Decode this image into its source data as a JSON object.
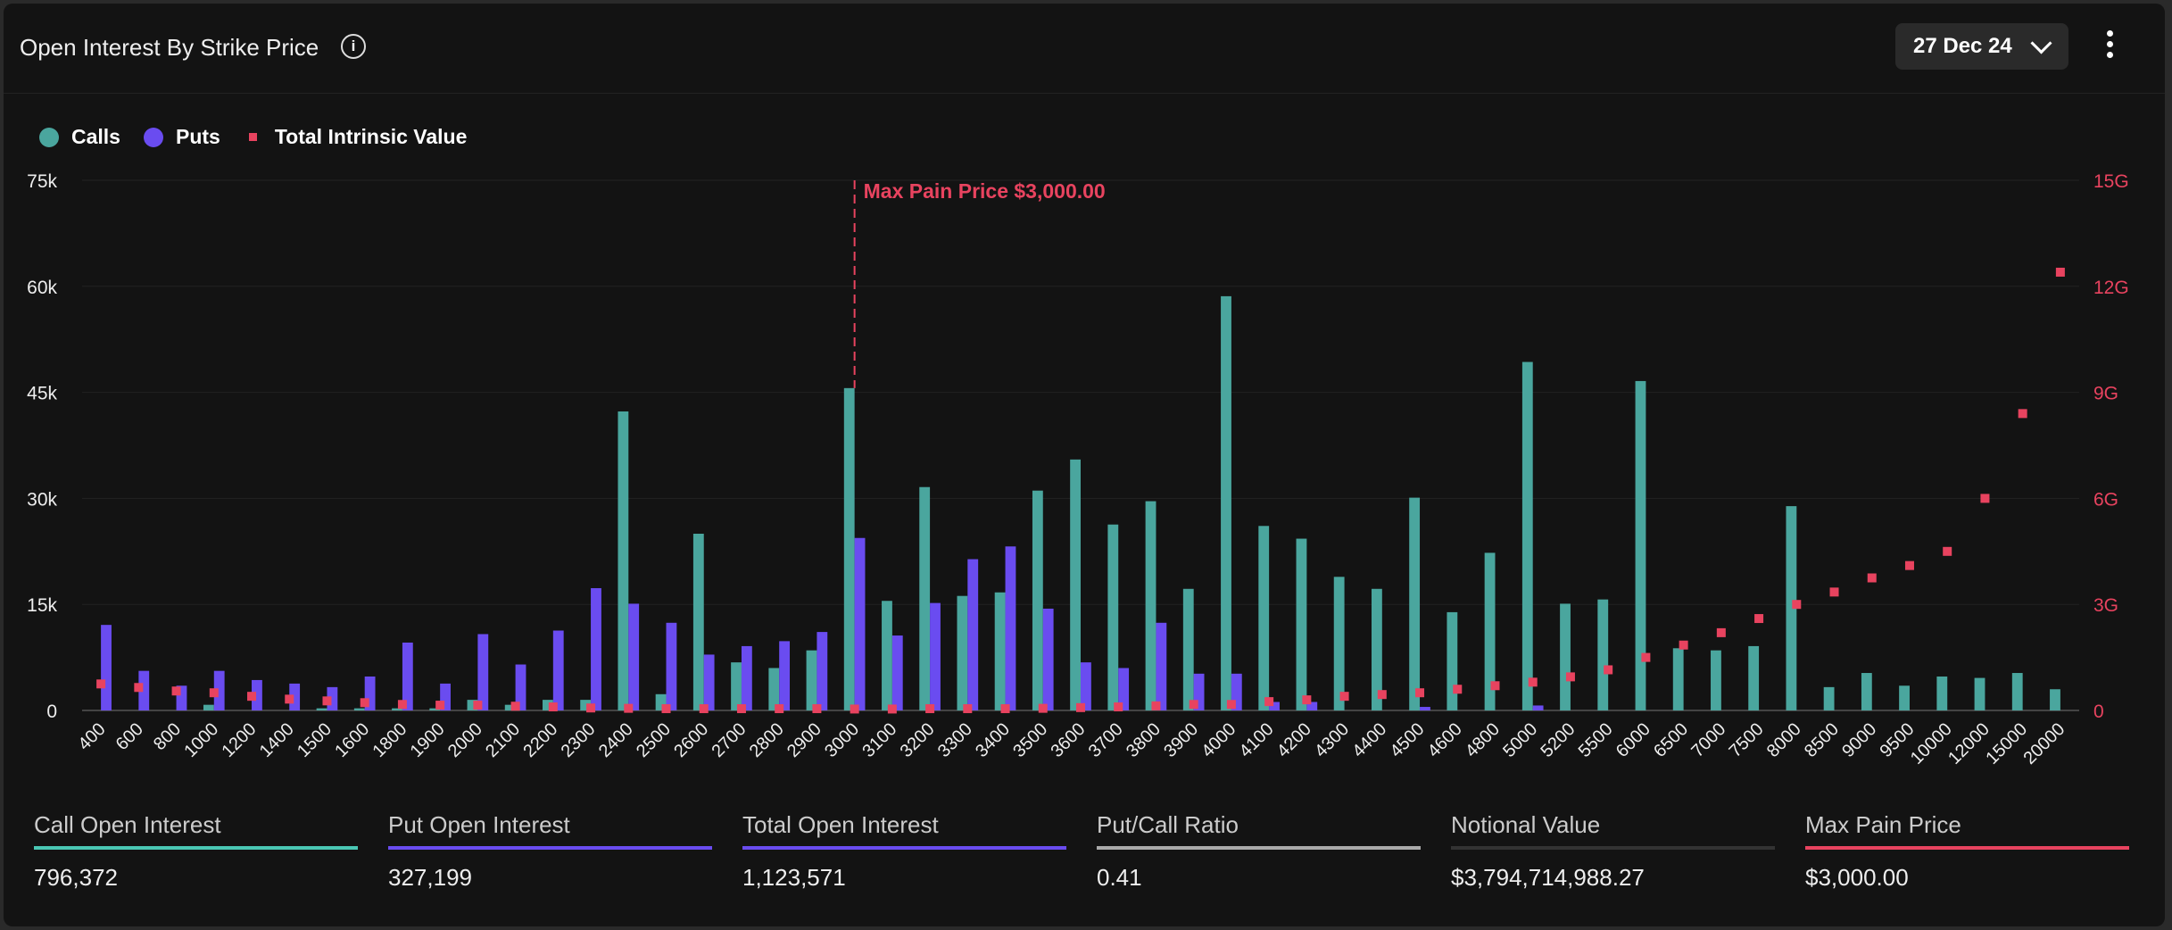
{
  "header": {
    "title": "Open Interest By Strike Price",
    "date_select": "27 Dec 24"
  },
  "legend": [
    {
      "name": "Calls",
      "color": "#4aa69e"
    },
    {
      "name": "Puts",
      "color": "#6a4cf0"
    },
    {
      "name": "Total Intrinsic Value",
      "color": "#e8435f"
    }
  ],
  "stats": [
    {
      "label": "Call Open Interest",
      "value": "796,372",
      "color": "#4ac7b4"
    },
    {
      "label": "Put Open Interest",
      "value": "327,199",
      "color": "#6a4cf0"
    },
    {
      "label": "Total Open Interest",
      "value": "1,123,571",
      "color": "#6a4cf0"
    },
    {
      "label": "Put/Call Ratio",
      "value": "0.41",
      "color": "#aaaaaa"
    },
    {
      "label": "Notional Value",
      "value": "$3,794,714,988.27",
      "color": "#333333"
    },
    {
      "label": "Max Pain Price",
      "value": "$3,000.00",
      "color": "#e8435f"
    }
  ],
  "chart_data": {
    "type": "bar",
    "categories": [
      "400",
      "600",
      "800",
      "1000",
      "1200",
      "1400",
      "1500",
      "1600",
      "1800",
      "1900",
      "2000",
      "2100",
      "2200",
      "2300",
      "2400",
      "2500",
      "2600",
      "2700",
      "2800",
      "2900",
      "3000",
      "3100",
      "3200",
      "3300",
      "3400",
      "3500",
      "3600",
      "3700",
      "3800",
      "3900",
      "4000",
      "4100",
      "4200",
      "4300",
      "4400",
      "4500",
      "4600",
      "4800",
      "5000",
      "5200",
      "5500",
      "6000",
      "6500",
      "7000",
      "7500",
      "8000",
      "8500",
      "9000",
      "9500",
      "10000",
      "12000",
      "15000",
      "20000"
    ],
    "series": [
      {
        "name": "Calls",
        "axis": "left",
        "values": [
          0,
          0,
          0,
          800,
          0,
          0,
          300,
          300,
          300,
          300,
          1500,
          800,
          1500,
          1500,
          42300,
          2300,
          25000,
          6800,
          6000,
          8500,
          45600,
          15500,
          31600,
          16200,
          16700,
          31100,
          35500,
          26300,
          29600,
          17200,
          58600,
          26100,
          24300,
          18900,
          17200,
          30100,
          13900,
          22300,
          49300,
          15100,
          15700,
          46600,
          8800,
          8500,
          9100,
          28900,
          3300,
          5300,
          3500,
          4800,
          4600,
          5300,
          3000
        ]
      },
      {
        "name": "Puts",
        "axis": "left",
        "values": [
          12100,
          5600,
          3500,
          5600,
          4300,
          3800,
          3300,
          4800,
          9600,
          3800,
          10800,
          6500,
          11300,
          17300,
          15100,
          12400,
          7900,
          9100,
          9800,
          11100,
          24400,
          10600,
          15200,
          21400,
          23200,
          14400,
          6800,
          6000,
          12400,
          5200,
          5200,
          1200,
          1200,
          0,
          0,
          500,
          0,
          0,
          700,
          0,
          0,
          0,
          0,
          0,
          0,
          0,
          0,
          0,
          0,
          0,
          0,
          0,
          0
        ]
      },
      {
        "name": "Total Intrinsic Value",
        "axis": "right",
        "type": "scatter",
        "values": [
          0.75,
          0.65,
          0.55,
          0.5,
          0.4,
          0.32,
          0.27,
          0.22,
          0.17,
          0.15,
          0.15,
          0.12,
          0.1,
          0.07,
          0.06,
          0.05,
          0.05,
          0.05,
          0.05,
          0.05,
          0.04,
          0.04,
          0.05,
          0.05,
          0.05,
          0.06,
          0.08,
          0.1,
          0.13,
          0.17,
          0.17,
          0.25,
          0.3,
          0.4,
          0.45,
          0.5,
          0.6,
          0.7,
          0.8,
          0.95,
          1.15,
          1.5,
          1.85,
          2.2,
          2.6,
          3.0,
          3.35,
          3.75,
          4.1,
          4.5,
          6.0,
          8.4,
          12.4
        ]
      }
    ],
    "y_left": {
      "ticks": [
        "0",
        "15k",
        "30k",
        "45k",
        "60k",
        "75k"
      ],
      "range": [
        0,
        75000
      ]
    },
    "y_right": {
      "ticks": [
        "0",
        "3G",
        "6G",
        "9G",
        "12G",
        "15G"
      ],
      "range": [
        0,
        15
      ],
      "unit": "G"
    },
    "annotation": {
      "text": "Max Pain Price $3,000.00",
      "at": "3000"
    },
    "grid": true,
    "legend_position": "top-left"
  }
}
